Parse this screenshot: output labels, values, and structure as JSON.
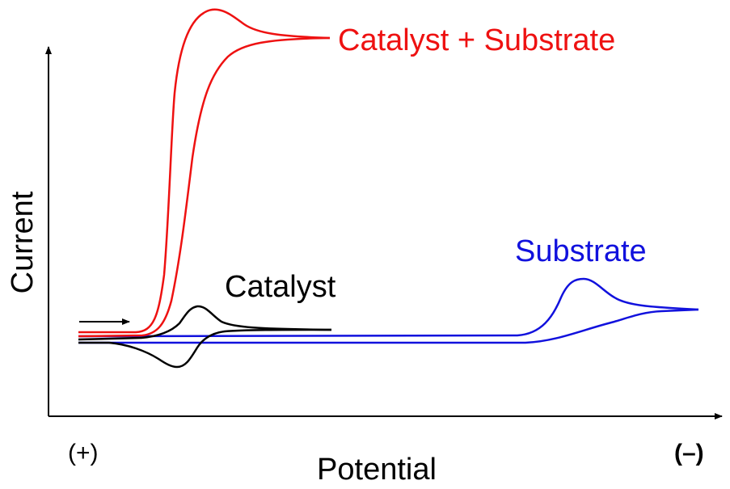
{
  "diagram": {
    "x_axis_label": "Potential",
    "y_axis_label": "Current",
    "x_left_end_label": "(+)",
    "x_right_end_label": "(–)",
    "traces": [
      {
        "id": "catalyst_substrate",
        "label": "Catalyst + Substrate",
        "color": "#ee1111"
      },
      {
        "id": "catalyst",
        "label": "Catalyst",
        "color": "#000000"
      },
      {
        "id": "substrate",
        "label": "Substrate",
        "color": "#1111dd"
      }
    ],
    "scan_direction_arrow": "right-arrow"
  }
}
